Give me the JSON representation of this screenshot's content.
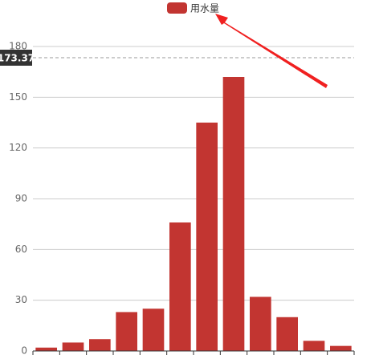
{
  "chart_data": {
    "type": "bar",
    "categories": [
      null,
      null,
      null,
      null,
      null,
      null,
      null,
      null,
      null,
      null,
      null,
      null
    ],
    "series": [
      {
        "name": "用水量",
        "color": "#c23531",
        "values": [
          2,
          5,
          7,
          23,
          25,
          76,
          135,
          162,
          32,
          20,
          6,
          3
        ]
      }
    ],
    "ylim": [
      0,
      180
    ],
    "yticks": [
      0,
      30,
      60,
      90,
      120,
      150,
      180
    ],
    "grid": true,
    "legend": "top",
    "pointer": {
      "value": 173.37
    }
  }
}
